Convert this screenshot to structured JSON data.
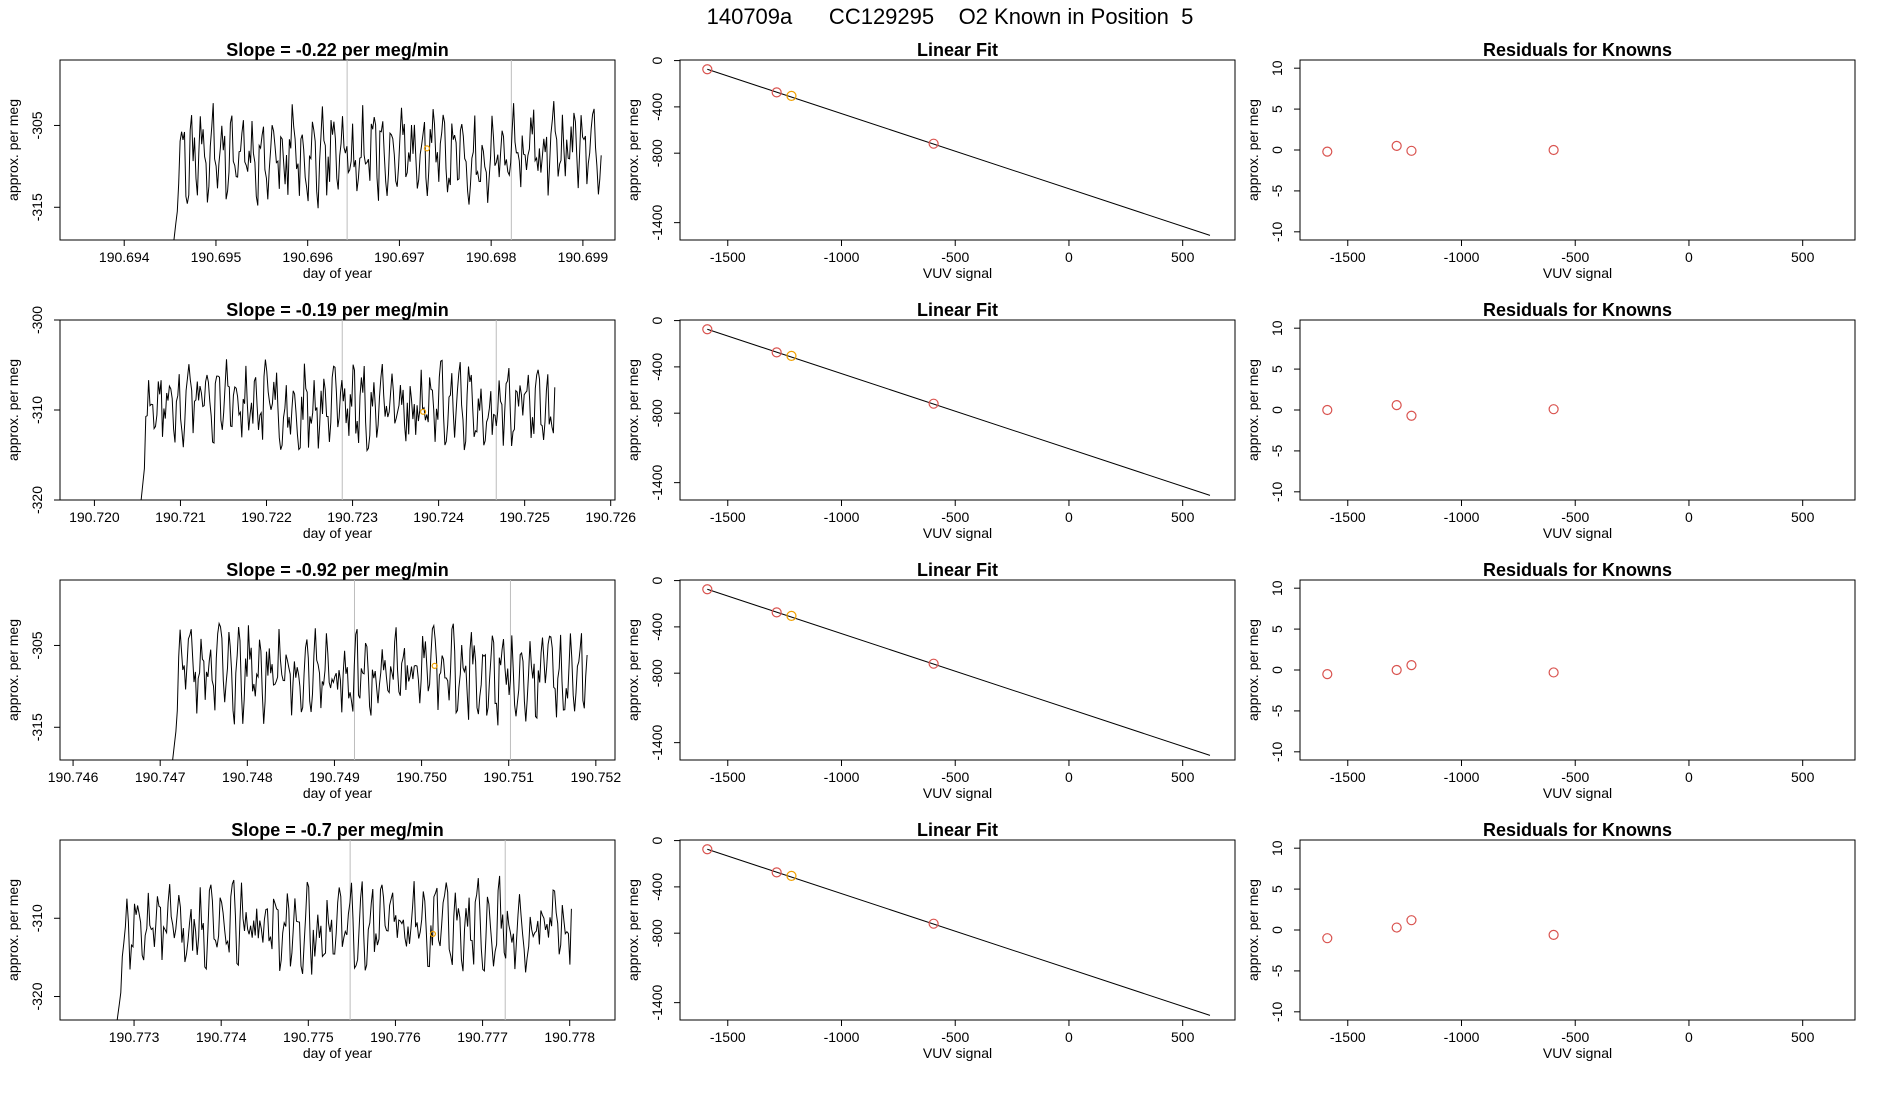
{
  "figure": {
    "main_title": "140709a      CC129295    O2 Known in Position  5"
  },
  "colors": {
    "known_point": "#d9534f",
    "highlight_point": "#f0a000",
    "gridline": "#bdbdbd",
    "ink": "#000000"
  },
  "chart_data": [
    {
      "row": 1,
      "type": "line",
      "title": "Slope =  -0.22  per meg/min",
      "xlabel": "day of year",
      "ylabel": "approx. per meg",
      "xlim": [
        190.6933,
        190.69935
      ],
      "ylim": [
        -319,
        -297
      ],
      "xticks": [
        "190.694",
        "190.695",
        "190.696",
        "190.697",
        "190.698",
        "190.699"
      ],
      "yticks": [
        "-305",
        "-315"
      ],
      "x_start": 190.6945,
      "x_end": 190.6992,
      "vlines": [
        190.69643,
        190.69822
      ],
      "highlight": [
        190.6973,
        -307.8
      ],
      "y_mean": -308.5,
      "y_amp": 6,
      "seed": 11
    },
    {
      "row": 1,
      "type": "scatter",
      "title": "Linear Fit",
      "xlabel": "VUV signal",
      "ylabel": "approx. per meg",
      "xlim": [
        -1710,
        730
      ],
      "ylim": [
        -1550,
        5
      ],
      "xticks": [
        "-1500",
        "-1000",
        "-500",
        "0",
        "500"
      ],
      "yticks": [
        "0",
        "-400",
        "-800",
        "-1400"
      ],
      "fit": [
        [
          -1590,
          -75
        ],
        [
          620,
          -1510
        ]
      ],
      "points": [
        [
          -1590,
          -75
        ],
        [
          -1285,
          -275
        ],
        [
          -1220,
          -305
        ],
        [
          -595,
          -718
        ]
      ],
      "highlight_index": 2
    },
    {
      "row": 1,
      "type": "scatter",
      "title": "Residuals for Knowns",
      "xlabel": "VUV signal",
      "ylabel": "approx. per meg",
      "xlim": [
        -1710,
        730
      ],
      "ylim": [
        -11,
        11
      ],
      "xticks": [
        "-1500",
        "-1000",
        "-500",
        "0",
        "500"
      ],
      "yticks": [
        "10",
        "5",
        "0",
        "-5",
        "-10"
      ],
      "points": [
        [
          -1590,
          -0.2
        ],
        [
          -1285,
          0.5
        ],
        [
          -1220,
          -0.1
        ],
        [
          -595,
          0.0
        ]
      ]
    },
    {
      "row": 2,
      "type": "line",
      "title": "Slope =  -0.19  per meg/min",
      "xlabel": "day of year",
      "ylabel": "approx. per meg",
      "xlim": [
        190.7196,
        190.72605
      ],
      "ylim": [
        -320,
        -300
      ],
      "xticks": [
        "190.720",
        "190.721",
        "190.722",
        "190.723",
        "190.724",
        "190.725",
        "190.726"
      ],
      "yticks": [
        "-300",
        "-310",
        "-320"
      ],
      "x_start": 190.7205,
      "x_end": 190.72535,
      "vlines": [
        190.72288,
        190.72467
      ],
      "highlight": [
        190.72382,
        -310.2
      ],
      "y_mean": -309.5,
      "y_amp": 5,
      "seed": 23
    },
    {
      "row": 2,
      "type": "scatter",
      "title": "Linear Fit",
      "xlabel": "VUV signal",
      "ylabel": "approx. per meg",
      "xlim": [
        -1710,
        730
      ],
      "ylim": [
        -1550,
        5
      ],
      "xticks": [
        "-1500",
        "-1000",
        "-500",
        "0",
        "500"
      ],
      "yticks": [
        "0",
        "-400",
        "-800",
        "-1400"
      ],
      "fit": [
        [
          -1590,
          -75
        ],
        [
          620,
          -1510
        ]
      ],
      "points": [
        [
          -1590,
          -75
        ],
        [
          -1285,
          -275
        ],
        [
          -1220,
          -305
        ],
        [
          -595,
          -718
        ]
      ],
      "highlight_index": 2
    },
    {
      "row": 2,
      "type": "scatter",
      "title": "Residuals for Knowns",
      "xlabel": "VUV signal",
      "ylabel": "approx. per meg",
      "xlim": [
        -1710,
        730
      ],
      "ylim": [
        -11,
        11
      ],
      "xticks": [
        "-1500",
        "-1000",
        "-500",
        "0",
        "500"
      ],
      "yticks": [
        "10",
        "5",
        "0",
        "-5",
        "-10"
      ],
      "points": [
        [
          -1590,
          0.0
        ],
        [
          -1285,
          0.6
        ],
        [
          -1220,
          -0.7
        ],
        [
          -595,
          0.1
        ]
      ]
    },
    {
      "row": 3,
      "type": "line",
      "title": "Slope =  -0.92  per meg/min",
      "xlabel": "day of year",
      "ylabel": "approx. per meg",
      "xlim": [
        190.74585,
        190.75222
      ],
      "ylim": [
        -319,
        -297
      ],
      "xticks": [
        "190.746",
        "190.747",
        "190.748",
        "190.749",
        "190.750",
        "190.751",
        "190.752"
      ],
      "yticks": [
        "-305",
        "-315"
      ],
      "x_start": 190.7471,
      "x_end": 190.7519,
      "vlines": [
        190.74923,
        190.75102
      ],
      "highlight": [
        190.75015,
        -307.5
      ],
      "y_mean": -308.5,
      "y_amp": 6,
      "seed": 37
    },
    {
      "row": 3,
      "type": "scatter",
      "title": "Linear Fit",
      "xlabel": "VUV signal",
      "ylabel": "approx. per meg",
      "xlim": [
        -1710,
        730
      ],
      "ylim": [
        -1550,
        5
      ],
      "xticks": [
        "-1500",
        "-1000",
        "-500",
        "0",
        "500"
      ],
      "yticks": [
        "0",
        "-400",
        "-800",
        "-1400"
      ],
      "fit": [
        [
          -1590,
          -75
        ],
        [
          620,
          -1510
        ]
      ],
      "points": [
        [
          -1590,
          -75
        ],
        [
          -1285,
          -275
        ],
        [
          -1220,
          -305
        ],
        [
          -595,
          -718
        ]
      ],
      "highlight_index": 2
    },
    {
      "row": 3,
      "type": "scatter",
      "title": "Residuals for Knowns",
      "xlabel": "VUV signal",
      "ylabel": "approx. per meg",
      "xlim": [
        -1710,
        730
      ],
      "ylim": [
        -11,
        11
      ],
      "xticks": [
        "-1500",
        "-1000",
        "-500",
        "0",
        "500"
      ],
      "yticks": [
        "10",
        "5",
        "0",
        "-5",
        "-10"
      ],
      "points": [
        [
          -1590,
          -0.5
        ],
        [
          -1285,
          0.0
        ],
        [
          -1220,
          0.6
        ],
        [
          -595,
          -0.3
        ]
      ]
    },
    {
      "row": 4,
      "type": "line",
      "title": "Slope =  -0.7  per meg/min",
      "xlabel": "day of year",
      "ylabel": "approx. per meg",
      "xlim": [
        190.77215,
        190.77852
      ],
      "ylim": [
        -323,
        -300
      ],
      "xticks": [
        "190.773",
        "190.774",
        "190.775",
        "190.776",
        "190.777",
        "190.778"
      ],
      "yticks": [
        "-310",
        "-320"
      ],
      "x_start": 190.77276,
      "x_end": 190.77802,
      "vlines": [
        190.77548,
        190.77726
      ],
      "highlight": [
        190.77643,
        -312.0
      ],
      "y_mean": -311,
      "y_amp": 6,
      "seed": 53
    },
    {
      "row": 4,
      "type": "scatter",
      "title": "Linear Fit",
      "xlabel": "VUV signal",
      "ylabel": "approx. per meg",
      "xlim": [
        -1710,
        730
      ],
      "ylim": [
        -1550,
        5
      ],
      "xticks": [
        "-1500",
        "-1000",
        "-500",
        "0",
        "500"
      ],
      "yticks": [
        "0",
        "-400",
        "-800",
        "-1400"
      ],
      "fit": [
        [
          -1590,
          -75
        ],
        [
          620,
          -1510
        ]
      ],
      "points": [
        [
          -1590,
          -75
        ],
        [
          -1285,
          -275
        ],
        [
          -1220,
          -305
        ],
        [
          -595,
          -718
        ]
      ],
      "highlight_index": 2
    },
    {
      "row": 4,
      "type": "scatter",
      "title": "Residuals for Knowns",
      "xlabel": "VUV signal",
      "ylabel": "approx. per meg",
      "xlim": [
        -1710,
        730
      ],
      "ylim": [
        -11,
        11
      ],
      "xticks": [
        "-1500",
        "-1000",
        "-500",
        "0",
        "500"
      ],
      "yticks": [
        "10",
        "5",
        "0",
        "-5",
        "-10"
      ],
      "points": [
        [
          -1590,
          -1.0
        ],
        [
          -1285,
          0.3
        ],
        [
          -1220,
          1.2
        ],
        [
          -595,
          -0.6
        ]
      ]
    }
  ]
}
